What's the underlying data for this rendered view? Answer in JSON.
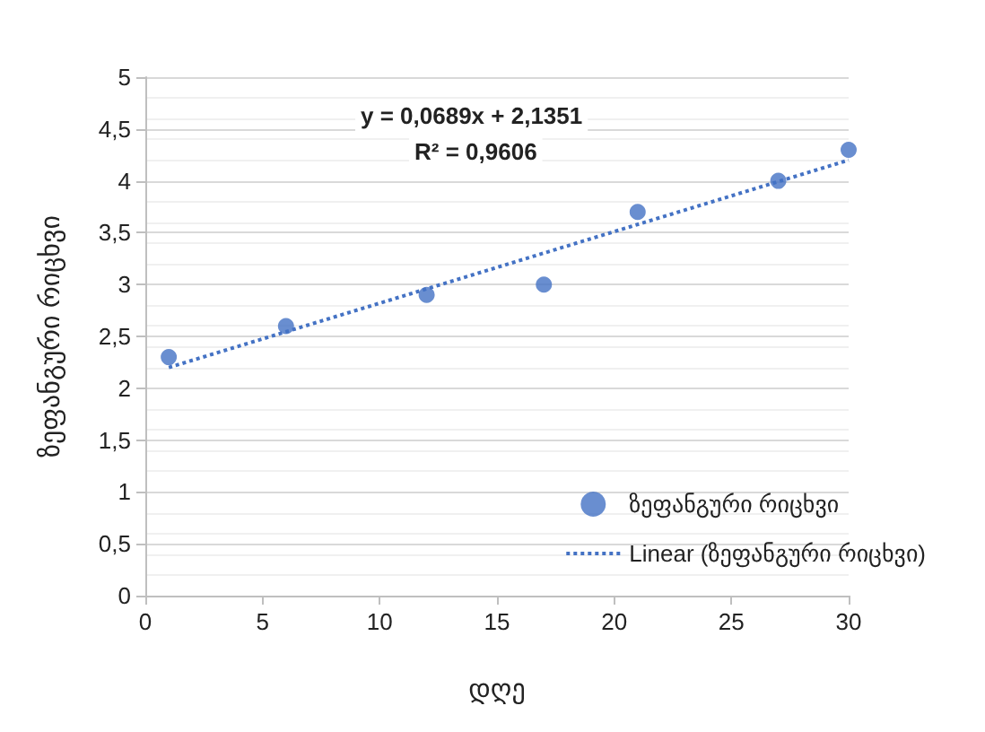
{
  "chart_data": {
    "type": "scatter",
    "xlabel": "დღე",
    "ylabel": "ზეფანგური რიცხვი",
    "annotations": [
      "y = 0,0689x + 2,1351",
      "R² = 0,9606"
    ],
    "series": [
      {
        "name": "ზეფანგური რიცხვი",
        "color": "#4472c4",
        "x": [
          1,
          6,
          12,
          17,
          21,
          27,
          30
        ],
        "values": [
          2.3,
          2.6,
          2.9,
          3.0,
          3.7,
          4.0,
          4.3
        ],
        "marker": "circle"
      },
      {
        "name": "Linear (ზეფანგური რიცხვი)",
        "type": "line",
        "color": "#4472c4",
        "x": [
          1,
          30
        ],
        "values": [
          2.2,
          4.2
        ],
        "line_style": "dotted",
        "marker": "none"
      }
    ],
    "xlim": [
      0,
      30
    ],
    "xticks": [
      0,
      5,
      10,
      15,
      20,
      25,
      30
    ],
    "ylim": [
      0,
      5
    ],
    "yticks": [
      0,
      {
        "value": 0.5,
        "label": "0,5"
      },
      1,
      {
        "value": 1.5,
        "label": "1,5"
      },
      2,
      {
        "value": 2.5,
        "label": "2,5"
      },
      3,
      {
        "value": 3.5,
        "label": "3,5"
      },
      4,
      {
        "value": 4.5,
        "label": "4,5"
      },
      5
    ],
    "grid": "y",
    "legend": "bottom right"
  }
}
